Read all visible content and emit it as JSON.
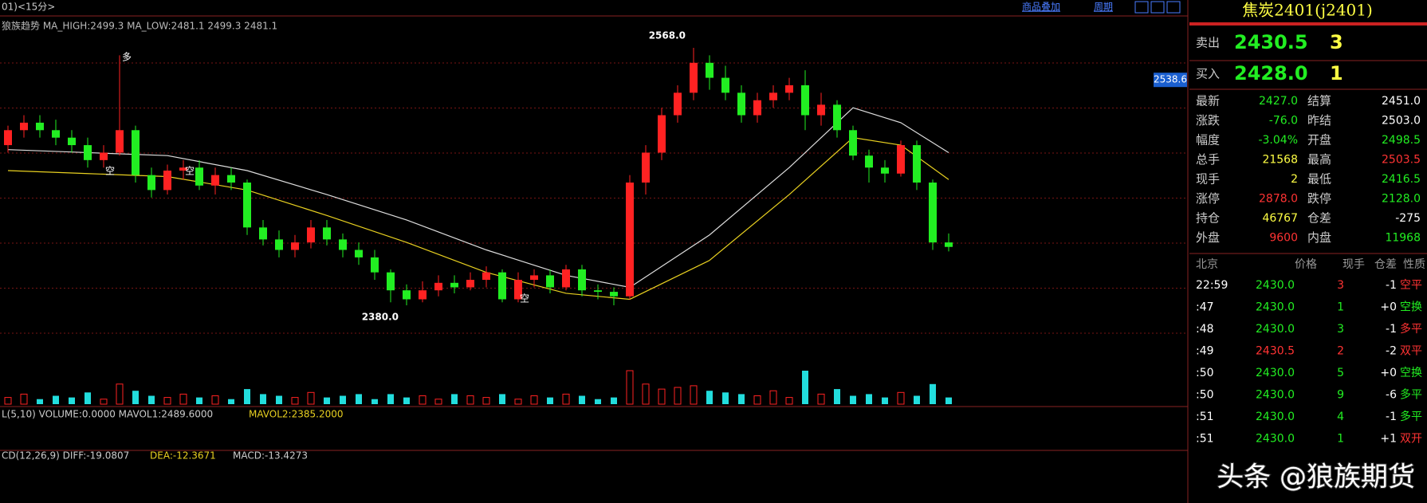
{
  "header": {
    "period": "01)<15分>",
    "links": [
      "商品叠加",
      "周期"
    ]
  },
  "chart_data": {
    "type": "candlestick",
    "indicator": "狼族趋势 MA_HIGH:2499.3 MA_LOW:2481.1 2499.3 2481.1",
    "up_color": "#ff2222",
    "down_color": "#22ee22",
    "ylim": [
      2380,
      2568
    ],
    "high_label": "2568.0",
    "low_label": "2380.0",
    "marker_buy": "多",
    "marker_sell": [
      "空",
      "空",
      "空"
    ],
    "price_tag": {
      "value": 2538.6,
      "label": "2538.6"
    },
    "candles": [
      [
        2495,
        2505,
        2508,
        2490
      ],
      [
        2505,
        2510,
        2515,
        2500
      ],
      [
        2510,
        2505,
        2515,
        2500
      ],
      [
        2505,
        2500,
        2512,
        2495
      ],
      [
        2500,
        2495,
        2505,
        2490
      ],
      [
        2495,
        2485,
        2500,
        2480
      ],
      [
        2485,
        2490,
        2495,
        2480
      ],
      [
        2490,
        2505,
        2555,
        2488
      ],
      [
        2505,
        2475,
        2508,
        2470
      ],
      [
        2475,
        2465,
        2480,
        2460
      ],
      [
        2465,
        2478,
        2482,
        2462
      ],
      [
        2478,
        2480,
        2485,
        2472
      ],
      [
        2480,
        2468,
        2485,
        2465
      ],
      [
        2468,
        2475,
        2480,
        2462
      ],
      [
        2475,
        2470,
        2480,
        2465
      ],
      [
        2470,
        2440,
        2472,
        2435
      ],
      [
        2440,
        2432,
        2445,
        2428
      ],
      [
        2432,
        2425,
        2438,
        2420
      ],
      [
        2425,
        2430,
        2435,
        2420
      ],
      [
        2430,
        2440,
        2445,
        2426
      ],
      [
        2440,
        2432,
        2445,
        2428
      ],
      [
        2432,
        2425,
        2436,
        2420
      ],
      [
        2425,
        2420,
        2430,
        2415
      ],
      [
        2420,
        2410,
        2425,
        2405
      ],
      [
        2410,
        2398,
        2412,
        2390
      ],
      [
        2398,
        2392,
        2402,
        2388
      ],
      [
        2392,
        2398,
        2404,
        2390
      ],
      [
        2398,
        2403,
        2408,
        2394
      ],
      [
        2403,
        2400,
        2408,
        2396
      ],
      [
        2400,
        2405,
        2410,
        2398
      ],
      [
        2405,
        2410,
        2414,
        2400
      ],
      [
        2410,
        2392,
        2412,
        2390
      ],
      [
        2392,
        2405,
        2410,
        2390
      ],
      [
        2405,
        2408,
        2412,
        2400
      ],
      [
        2408,
        2400,
        2412,
        2396
      ],
      [
        2400,
        2412,
        2415,
        2398
      ],
      [
        2412,
        2398,
        2415,
        2394
      ],
      [
        2398,
        2397,
        2402,
        2392
      ],
      [
        2397,
        2394,
        2400,
        2388
      ],
      [
        2394,
        2470,
        2475,
        2392
      ],
      [
        2470,
        2490,
        2495,
        2462
      ],
      [
        2490,
        2515,
        2520,
        2485
      ],
      [
        2515,
        2530,
        2535,
        2510
      ],
      [
        2530,
        2550,
        2560,
        2525
      ],
      [
        2550,
        2540,
        2555,
        2532
      ],
      [
        2540,
        2530,
        2548,
        2525
      ],
      [
        2530,
        2515,
        2535,
        2510
      ],
      [
        2515,
        2525,
        2530,
        2510
      ],
      [
        2525,
        2530,
        2535,
        2520
      ],
      [
        2530,
        2535,
        2540,
        2525
      ],
      [
        2535,
        2515,
        2545,
        2505
      ],
      [
        2515,
        2522,
        2530,
        2508
      ],
      [
        2522,
        2505,
        2525,
        2500
      ],
      [
        2505,
        2488,
        2508,
        2485
      ],
      [
        2488,
        2480,
        2492,
        2470
      ],
      [
        2480,
        2476,
        2485,
        2470
      ],
      [
        2476,
        2495,
        2498,
        2474
      ],
      [
        2495,
        2470,
        2498,
        2465
      ],
      [
        2470,
        2430,
        2472,
        2425
      ],
      [
        2430,
        2427,
        2436,
        2424
      ]
    ],
    "ma_x": [
      0,
      5,
      10,
      15,
      20,
      25,
      30,
      35,
      39,
      44,
      49,
      53,
      56,
      59
    ],
    "ma_high": [
      2492,
      2490,
      2488,
      2478,
      2462,
      2445,
      2425,
      2408,
      2400,
      2435,
      2480,
      2520,
      2510,
      2490
    ],
    "ma_low": [
      2478,
      2476,
      2474,
      2465,
      2448,
      2430,
      2410,
      2396,
      2392,
      2418,
      2462,
      2500,
      2495,
      2472
    ],
    "ma_high_color": "#dddddd",
    "ma_low_color": "#e8d020",
    "volume_label": "L(5,10) VOLUME:0.0000 MAVOL1:2489.6000",
    "volume_label2": "MAVOL2:2385.2000",
    "vlim": [
      0,
      100
    ],
    "volume": [
      20,
      30,
      15,
      25,
      20,
      35,
      15,
      60,
      40,
      25,
      20,
      30,
      20,
      25,
      15,
      45,
      30,
      25,
      20,
      35,
      20,
      25,
      30,
      15,
      30,
      20,
      25,
      15,
      30,
      25,
      20,
      30,
      15,
      25,
      20,
      30,
      25,
      15,
      20,
      100,
      60,
      45,
      50,
      55,
      40,
      35,
      30,
      25,
      40,
      20,
      100,
      30,
      45,
      25,
      30,
      20,
      35,
      25,
      60,
      20
    ],
    "macd_label": "CD(12,26,9) DIFF:-19.0807",
    "macd_dea": "DEA:-12.3671",
    "macd_val": "MACD:-13.4273"
  },
  "quote": {
    "title": "焦炭2401(j2401)",
    "sell_label": "卖出",
    "sell_price": "2430.5",
    "sell_qty": "3",
    "buy_label": "买入",
    "buy_price": "2428.0",
    "buy_qty": "1",
    "rows": [
      [
        "最新",
        "2427.0",
        "结算",
        "2451.0"
      ],
      [
        "涨跌",
        "-76.0",
        "昨结",
        "2503.0"
      ],
      [
        "幅度",
        "-3.04%",
        "开盘",
        "2498.5"
      ],
      [
        "总手",
        "21568",
        "最高",
        "2503.5"
      ],
      [
        "现手",
        "2",
        "最低",
        "2416.5"
      ],
      [
        "涨停",
        "2878.0",
        "跌停",
        "2128.0"
      ],
      [
        "持仓",
        "46767",
        "仓差",
        "-275"
      ],
      [
        "外盘",
        "9600",
        "内盘",
        "11968"
      ]
    ],
    "row_colors": [
      [
        "#22ee22",
        "#ffffff"
      ],
      [
        "#22ee22",
        "#ffffff"
      ],
      [
        "#22ee22",
        "#22ee22"
      ],
      [
        "#ffff44",
        "#ff3333"
      ],
      [
        "#ffff44",
        "#22ee22"
      ],
      [
        "#ff3333",
        "#22ee22"
      ],
      [
        "#ffff44",
        "#ffffff"
      ],
      [
        "#ff3333",
        "#22ee22"
      ]
    ],
    "trade_header": [
      "北京",
      "价格",
      "现手",
      "仓差",
      "性质"
    ],
    "trades": [
      [
        "22:59",
        "2430.0",
        "3",
        "-1",
        "空平"
      ],
      [
        ":47",
        "2430.0",
        "1",
        "+0",
        "空换"
      ],
      [
        ":48",
        "2430.0",
        "3",
        "-1",
        "多平"
      ],
      [
        ":49",
        "2430.5",
        "2",
        "-2",
        "双平"
      ],
      [
        ":50",
        "2430.0",
        "5",
        "+0",
        "空换"
      ],
      [
        ":50",
        "2430.0",
        "9",
        "-6",
        "多平"
      ],
      [
        ":51",
        "2430.0",
        "4",
        "-1",
        "多平"
      ],
      [
        ":51",
        "2430.0",
        "1",
        "+1",
        "双开"
      ]
    ],
    "trade_colors": [
      [
        "#22ee22",
        "#ff3333",
        "#ff3333"
      ],
      [
        "#22ee22",
        "#22ee22",
        "#22ee22"
      ],
      [
        "#22ee22",
        "#22ee22",
        "#ff3333"
      ],
      [
        "#ff3333",
        "#ff3333",
        "#ff3333"
      ],
      [
        "#22ee22",
        "#22ee22",
        "#22ee22"
      ],
      [
        "#22ee22",
        "#22ee22",
        "#22ee22"
      ],
      [
        "#22ee22",
        "#22ee22",
        "#22ee22"
      ],
      [
        "#22ee22",
        "#22ee22",
        "#ff3333"
      ]
    ]
  },
  "watermark": "头条 @狼族期货"
}
